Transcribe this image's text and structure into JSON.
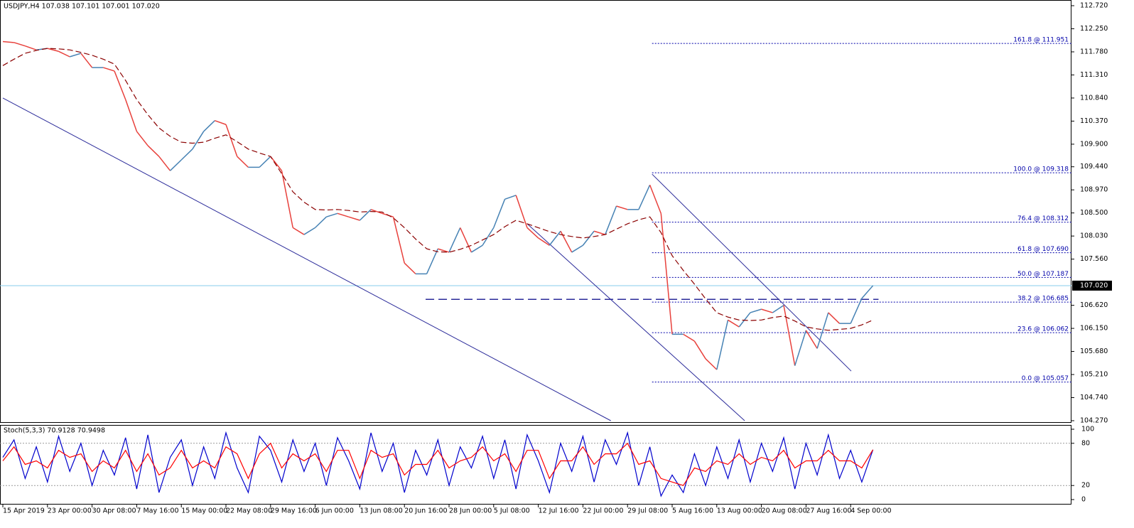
{
  "chart_data": {
    "type": "line",
    "title": "USDJPY,H4  107.038 107.101 107.001 107.020",
    "y2_title": "Stoch(5,3,3) 70.9128 70.9498",
    "categories": [
      "15 Apr 2019",
      null,
      null,
      null,
      "23 Apr 00:00",
      null,
      null,
      null,
      "30 Apr 08:00",
      null,
      null,
      null,
      "7 May 16:00",
      null,
      null,
      null,
      "15 May 00:00",
      null,
      null,
      null,
      "22 May 08:00",
      null,
      null,
      null,
      "29 May 16:00",
      null,
      null,
      null,
      "6 Jun 00:00",
      null,
      null,
      null,
      "13 Jun 08:00",
      null,
      null,
      null,
      "20 Jun 16:00",
      null,
      null,
      null,
      "28 Jun 00:00",
      null,
      null,
      null,
      "5 Jul 08:00",
      null,
      null,
      null,
      "12 Jul 16:00",
      null,
      null,
      null,
      "22 Jul 00:00",
      null,
      null,
      null,
      "29 Jul 08:00",
      null,
      null,
      null,
      "5 Aug 16:00",
      null,
      null,
      null,
      "13 Aug 00:00",
      null,
      null,
      null,
      "20 Aug 08:00",
      null,
      null,
      null,
      "27 Aug 16:00",
      null,
      null,
      null,
      "4 Sep 00:00",
      null,
      null
    ],
    "series": [
      {
        "color": "#e8413c",
        "up_color": "#4682b4",
        "values": [
          111.99,
          111.97,
          111.9,
          111.82,
          111.85,
          111.79,
          111.68,
          111.75,
          111.46,
          111.46,
          111.39,
          110.81,
          110.16,
          109.87,
          109.65,
          109.36,
          109.58,
          109.8,
          110.16,
          110.38,
          110.3,
          109.65,
          109.43,
          109.43,
          109.65,
          109.36,
          108.2,
          108.06,
          108.2,
          108.42,
          108.49,
          108.42,
          108.35,
          108.57,
          108.49,
          108.42,
          107.48,
          107.26,
          107.26,
          107.77,
          107.7,
          108.2,
          107.7,
          107.84,
          108.2,
          108.78,
          108.86,
          108.2,
          107.99,
          107.84,
          108.13,
          107.7,
          107.84,
          108.13,
          108.06,
          108.64,
          108.57,
          108.57,
          109.07,
          108.49,
          106.03,
          106.03,
          105.89,
          105.53,
          105.31,
          106.32,
          106.18,
          106.47,
          106.54,
          106.47,
          106.62,
          105.39,
          106.11,
          105.74,
          106.47,
          106.25,
          106.25,
          106.76,
          107.02
        ]
      },
      {
        "color": "#8b0000",
        "dashed": true,
        "values": [
          111.5,
          111.63,
          111.75,
          111.81,
          111.85,
          111.84,
          111.82,
          111.77,
          111.71,
          111.63,
          111.53,
          111.2,
          110.81,
          110.5,
          110.23,
          110.06,
          109.94,
          109.92,
          109.94,
          110.02,
          110.09,
          109.95,
          109.8,
          109.72,
          109.65,
          109.3,
          108.93,
          108.72,
          108.57,
          108.56,
          108.57,
          108.55,
          108.52,
          108.53,
          108.52,
          108.4,
          108.2,
          107.97,
          107.77,
          107.71,
          107.7,
          107.76,
          107.84,
          107.95,
          108.06,
          108.22,
          108.35,
          108.28,
          108.2,
          108.12,
          108.06,
          108.02,
          107.99,
          108.02,
          108.06,
          108.17,
          108.28,
          108.36,
          108.42,
          108.1,
          107.63,
          107.33,
          107.05,
          106.75,
          106.47,
          106.38,
          106.32,
          106.31,
          106.32,
          106.37,
          106.4,
          106.3,
          106.18,
          106.14,
          106.11,
          106.13,
          106.15,
          106.22,
          106.32
        ]
      },
      {
        "color": "#0000cd",
        "axis": "y2",
        "values": [
          60,
          85,
          30,
          75,
          25,
          90,
          40,
          80,
          20,
          70,
          35,
          88,
          15,
          92,
          10,
          60,
          85,
          20,
          75,
          30,
          95,
          45,
          10,
          90,
          70,
          25,
          85,
          40,
          80,
          20,
          88,
          55,
          15,
          95,
          40,
          80,
          10,
          70,
          35,
          85,
          20,
          75,
          45,
          90,
          30,
          85,
          15,
          92,
          55,
          10,
          80,
          40,
          90,
          25,
          85,
          50,
          95,
          20,
          75,
          5,
          35,
          10,
          65,
          20,
          75,
          30,
          85,
          25,
          80,
          40,
          88,
          15,
          80,
          35,
          92,
          30,
          70,
          25,
          70.9128
        ]
      },
      {
        "color": "#ff0000",
        "axis": "y2",
        "values": [
          55,
          75,
          50,
          55,
          45,
          70,
          60,
          65,
          40,
          55,
          45,
          70,
          40,
          65,
          35,
          45,
          70,
          45,
          55,
          45,
          75,
          65,
          30,
          65,
          80,
          45,
          65,
          55,
          65,
          40,
          70,
          70,
          30,
          70,
          60,
          65,
          35,
          50,
          50,
          70,
          45,
          55,
          60,
          75,
          55,
          65,
          40,
          70,
          70,
          30,
          55,
          55,
          75,
          50,
          65,
          65,
          80,
          50,
          55,
          30,
          25,
          20,
          45,
          40,
          55,
          50,
          65,
          50,
          60,
          55,
          70,
          45,
          55,
          55,
          70,
          55,
          55,
          45,
          70.9498
        ]
      }
    ],
    "ylim": [
      104.27,
      112.72
    ],
    "yticks": [
      {
        "value": 112.72,
        "label": "112.720"
      },
      {
        "value": 112.25,
        "label": "112.250"
      },
      {
        "value": 111.78,
        "label": "111.780"
      },
      {
        "value": 111.31,
        "label": "111.310"
      },
      {
        "value": 110.84,
        "label": "110.840"
      },
      {
        "value": 110.37,
        "label": "110.370"
      },
      {
        "value": 109.9,
        "label": "109.900"
      },
      {
        "value": 109.44,
        "label": "109.440"
      },
      {
        "value": 108.97,
        "label": "108.970"
      },
      {
        "value": 108.5,
        "label": "108.500"
      },
      {
        "value": 108.03,
        "label": "108.030"
      },
      {
        "value": 107.56,
        "label": "107.560"
      },
      {
        "value": 106.62,
        "label": "106.620"
      },
      {
        "value": 106.15,
        "label": "106.150"
      },
      {
        "value": 105.68,
        "label": "105.680"
      },
      {
        "value": 105.21,
        "label": "105.210"
      },
      {
        "value": 104.74,
        "label": "104.740"
      },
      {
        "value": 104.27,
        "label": "104.270"
      }
    ],
    "y2lim": [
      0,
      100
    ],
    "y2ticks": [
      0,
      20,
      80,
      100
    ],
    "fib_levels": [
      {
        "value": 111.951,
        "label": "161.8 @ 111.951"
      },
      {
        "value": 109.318,
        "label": "100.0 @ 109.318"
      },
      {
        "value": 108.312,
        "label": "76.4 @ 108.312"
      },
      {
        "value": 107.69,
        "label": "61.8 @ 107.690"
      },
      {
        "value": 107.187,
        "label": "50.0 @ 107.187"
      },
      {
        "value": 106.685,
        "label": "38.2 @ 106.685"
      },
      {
        "value": 106.062,
        "label": "23.6 @ 106.062"
      },
      {
        "value": 105.057,
        "label": "0.0 @ 105.057"
      }
    ],
    "fib_color": "#0000aa",
    "fib_start": 58.2,
    "current_price": {
      "value": 107.02,
      "label": "107.020",
      "color": "#87ceeb"
    },
    "support_line": {
      "value": 106.74,
      "x": [
        37.9,
        78.5
      ],
      "color": "#2b2b9a"
    },
    "trendlines": [
      {
        "x": [
          0,
          54.5
        ],
        "y": [
          110.84,
          104.27
        ],
        "color": "#2b2b9a"
      },
      {
        "x": [
          58.2,
          76.05
        ],
        "y": [
          109.29,
          105.28
        ],
        "color": "#2b2b9a"
      },
      {
        "x": [
          47.0,
          66.5
        ],
        "y": [
          108.28,
          104.27
        ],
        "color": "#2b2b9a"
      }
    ]
  }
}
